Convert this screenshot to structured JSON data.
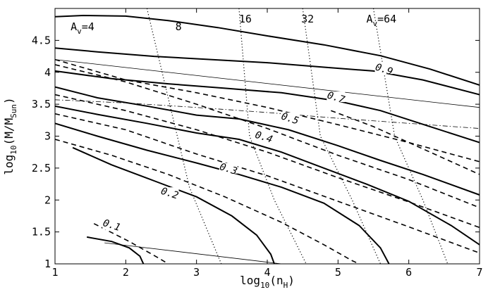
{
  "chart_data": {
    "type": "line",
    "xlabel": "log",
    "xlabel_sub": "10",
    "xlabel_tail": "(n",
    "xlabel_tail_sub": "H",
    "xlabel_close": ")",
    "ylabel": "log",
    "ylabel_sub": "10",
    "ylabel_tail": "(M/M",
    "ylabel_tail_sub": "Sun",
    "ylabel_close": ")",
    "xlim": [
      1,
      7
    ],
    "ylim": [
      1,
      5
    ],
    "x_ticks": [
      1,
      2,
      3,
      4,
      5,
      6,
      7
    ],
    "x_tick_labels": [
      "1",
      "2",
      "3",
      "4",
      "5",
      "6",
      "7"
    ],
    "y_ticks": [
      1,
      1.5,
      2,
      2.5,
      3,
      3.5,
      4,
      4.5
    ],
    "y_tick_labels": [
      "1",
      "1.5",
      "2",
      "2.5",
      "3",
      "3.5",
      "4",
      "4.5"
    ],
    "grid": false,
    "solid_contours": [
      {
        "label": "0.1",
        "label_at": [
          1.8,
          1.6
        ],
        "points": [
          [
            1.45,
            1.42
          ],
          [
            1.8,
            1.35
          ],
          [
            2.05,
            1.25
          ],
          [
            2.2,
            1.12
          ],
          [
            2.25,
            1.0
          ]
        ]
      },
      {
        "label": "0.2",
        "label_at": [
          2.62,
          2.1
        ],
        "points": [
          [
            1.25,
            2.82
          ],
          [
            1.8,
            2.55
          ],
          [
            2.4,
            2.3
          ],
          [
            3.0,
            2.05
          ],
          [
            3.5,
            1.75
          ],
          [
            3.85,
            1.45
          ],
          [
            4.05,
            1.15
          ],
          [
            4.1,
            1.0
          ]
        ]
      },
      {
        "label": "0.3",
        "label_at": [
          3.45,
          2.48
        ],
        "points": [
          [
            1,
            3.2
          ],
          [
            1.6,
            3.0
          ],
          [
            2.3,
            2.78
          ],
          [
            3.0,
            2.58
          ],
          [
            3.6,
            2.4
          ],
          [
            4.2,
            2.2
          ],
          [
            4.8,
            1.95
          ],
          [
            5.3,
            1.6
          ],
          [
            5.6,
            1.25
          ],
          [
            5.72,
            1.0
          ]
        ]
      },
      {
        "label": "0.4",
        "label_at": [
          3.95,
          2.98
        ],
        "points": [
          [
            1,
            3.47
          ],
          [
            1.6,
            3.34
          ],
          [
            2.3,
            3.2
          ],
          [
            3.0,
            3.05
          ],
          [
            3.6,
            2.95
          ],
          [
            4.2,
            2.75
          ],
          [
            4.8,
            2.5
          ],
          [
            5.4,
            2.25
          ],
          [
            6.0,
            1.98
          ],
          [
            6.6,
            1.6
          ],
          [
            7,
            1.3
          ]
        ]
      },
      {
        "label": "0.5",
        "label_at": [
          4.32,
          3.27
        ],
        "points": [
          [
            1,
            3.77
          ],
          [
            1.6,
            3.6
          ],
          [
            2.3,
            3.47
          ],
          [
            3.0,
            3.33
          ],
          [
            3.6,
            3.27
          ],
          [
            4.3,
            3.1
          ],
          [
            5.0,
            2.85
          ],
          [
            5.6,
            2.62
          ],
          [
            6.2,
            2.4
          ],
          [
            7,
            2.08
          ]
        ]
      },
      {
        "label": "0.7",
        "label_at": [
          4.97,
          3.6
        ],
        "points": [
          [
            1,
            4.02
          ],
          [
            1.8,
            3.9
          ],
          [
            2.6,
            3.82
          ],
          [
            3.4,
            3.75
          ],
          [
            4.2,
            3.68
          ],
          [
            5.0,
            3.55
          ],
          [
            5.6,
            3.4
          ],
          [
            6.3,
            3.15
          ],
          [
            7,
            2.9
          ]
        ]
      },
      {
        "label": "0.9",
        "label_at": [
          5.65,
          4.04
        ],
        "points": [
          [
            1,
            4.38
          ],
          [
            1.6,
            4.32
          ],
          [
            2.4,
            4.25
          ],
          [
            3.2,
            4.2
          ],
          [
            4.0,
            4.15
          ],
          [
            4.8,
            4.08
          ],
          [
            5.5,
            4.02
          ],
          [
            6.2,
            3.88
          ],
          [
            7,
            3.65
          ]
        ]
      },
      {
        "label": "",
        "label_at": null,
        "points": [
          [
            1,
            4.87
          ],
          [
            1.4,
            4.89
          ],
          [
            2.0,
            4.88
          ],
          [
            2.6,
            4.81
          ],
          [
            3.3,
            4.7
          ],
          [
            4.0,
            4.57
          ],
          [
            4.8,
            4.43
          ],
          [
            5.6,
            4.26
          ],
          [
            6.3,
            4.05
          ],
          [
            7,
            3.8
          ]
        ]
      }
    ],
    "dashed_lines": [
      {
        "points": [
          [
            1.55,
            1.63
          ],
          [
            2.05,
            1.35
          ],
          [
            2.45,
            1.1
          ],
          [
            2.6,
            1.0
          ]
        ]
      },
      {
        "points": [
          [
            1,
            2.95
          ],
          [
            1.8,
            2.7
          ],
          [
            2.6,
            2.4
          ],
          [
            3.4,
            2.05
          ],
          [
            4.2,
            1.65
          ],
          [
            4.8,
            1.3
          ],
          [
            5.2,
            1.05
          ],
          [
            5.3,
            1.0
          ]
        ]
      },
      {
        "points": [
          [
            1,
            3.35
          ],
          [
            2,
            3.1
          ],
          [
            3,
            2.72
          ],
          [
            4,
            2.38
          ],
          [
            5,
            1.98
          ],
          [
            6,
            1.58
          ],
          [
            7,
            1.17
          ]
        ]
      },
      {
        "points": [
          [
            1,
            3.65
          ],
          [
            2,
            3.4
          ],
          [
            3,
            3.1
          ],
          [
            4,
            2.75
          ],
          [
            5,
            2.35
          ],
          [
            6,
            1.97
          ],
          [
            7,
            1.57
          ]
        ]
      },
      {
        "points": [
          [
            1,
            4.12
          ],
          [
            2,
            3.85
          ],
          [
            3,
            3.5
          ],
          [
            4,
            3.12
          ],
          [
            5,
            2.7
          ],
          [
            6,
            2.32
          ],
          [
            7,
            1.88
          ]
        ]
      },
      {
        "points": [
          [
            1,
            4.2
          ],
          [
            2,
            3.88
          ],
          [
            3,
            3.68
          ],
          [
            4,
            3.45
          ],
          [
            5,
            3.18
          ],
          [
            6,
            2.9
          ],
          [
            7,
            2.6
          ]
        ]
      },
      {
        "points": [
          [
            4.9,
            3.4
          ],
          [
            5.5,
            3.15
          ],
          [
            6.1,
            2.85
          ],
          [
            6.7,
            2.55
          ],
          [
            7,
            2.4
          ]
        ]
      }
    ],
    "thin_lines": [
      {
        "points": [
          [
            1,
            4.2
          ],
          [
            7,
            3.45
          ]
        ]
      },
      {
        "points": [
          [
            1.7,
            1.33
          ],
          [
            4.2,
            1.0
          ]
        ]
      }
    ],
    "dashdot_lines": [
      {
        "points": [
          [
            1,
            3.57
          ],
          [
            2,
            3.52
          ],
          [
            3,
            3.45
          ],
          [
            4,
            3.37
          ],
          [
            5,
            3.28
          ],
          [
            6,
            3.2
          ],
          [
            7,
            3.12
          ]
        ]
      }
    ],
    "dotted_lines": [
      {
        "label": "8",
        "points": [
          [
            2.3,
            5.0
          ],
          [
            2.9,
            2.2
          ],
          [
            3.35,
            1.0
          ]
        ]
      },
      {
        "label": "16",
        "points": [
          [
            3.6,
            5.0
          ],
          [
            3.75,
            3.0
          ],
          [
            4.1,
            2.0
          ],
          [
            4.55,
            1.0
          ]
        ]
      },
      {
        "label": "32",
        "points": [
          [
            4.5,
            5.0
          ],
          [
            4.75,
            3.0
          ],
          [
            5.2,
            2.0
          ],
          [
            5.6,
            1.0
          ]
        ]
      },
      {
        "label": "64",
        "points": [
          [
            5.5,
            5.0
          ],
          [
            5.8,
            3.0
          ],
          [
            6.2,
            2.0
          ],
          [
            6.55,
            1.0
          ]
        ]
      }
    ],
    "annotations": [
      {
        "text": "A",
        "sub": "v",
        "tail": "=4",
        "at": [
          1.22,
          4.66
        ]
      },
      {
        "text": "8",
        "sub": "",
        "tail": "",
        "at": [
          2.7,
          4.66
        ]
      },
      {
        "text": "16",
        "sub": "",
        "tail": "",
        "at": [
          3.6,
          4.78
        ]
      },
      {
        "text": "32",
        "sub": "",
        "tail": "",
        "at": [
          4.48,
          4.78
        ]
      },
      {
        "text": "A",
        "sub": "v",
        "tail": "=64",
        "at": [
          5.4,
          4.78
        ]
      }
    ]
  }
}
